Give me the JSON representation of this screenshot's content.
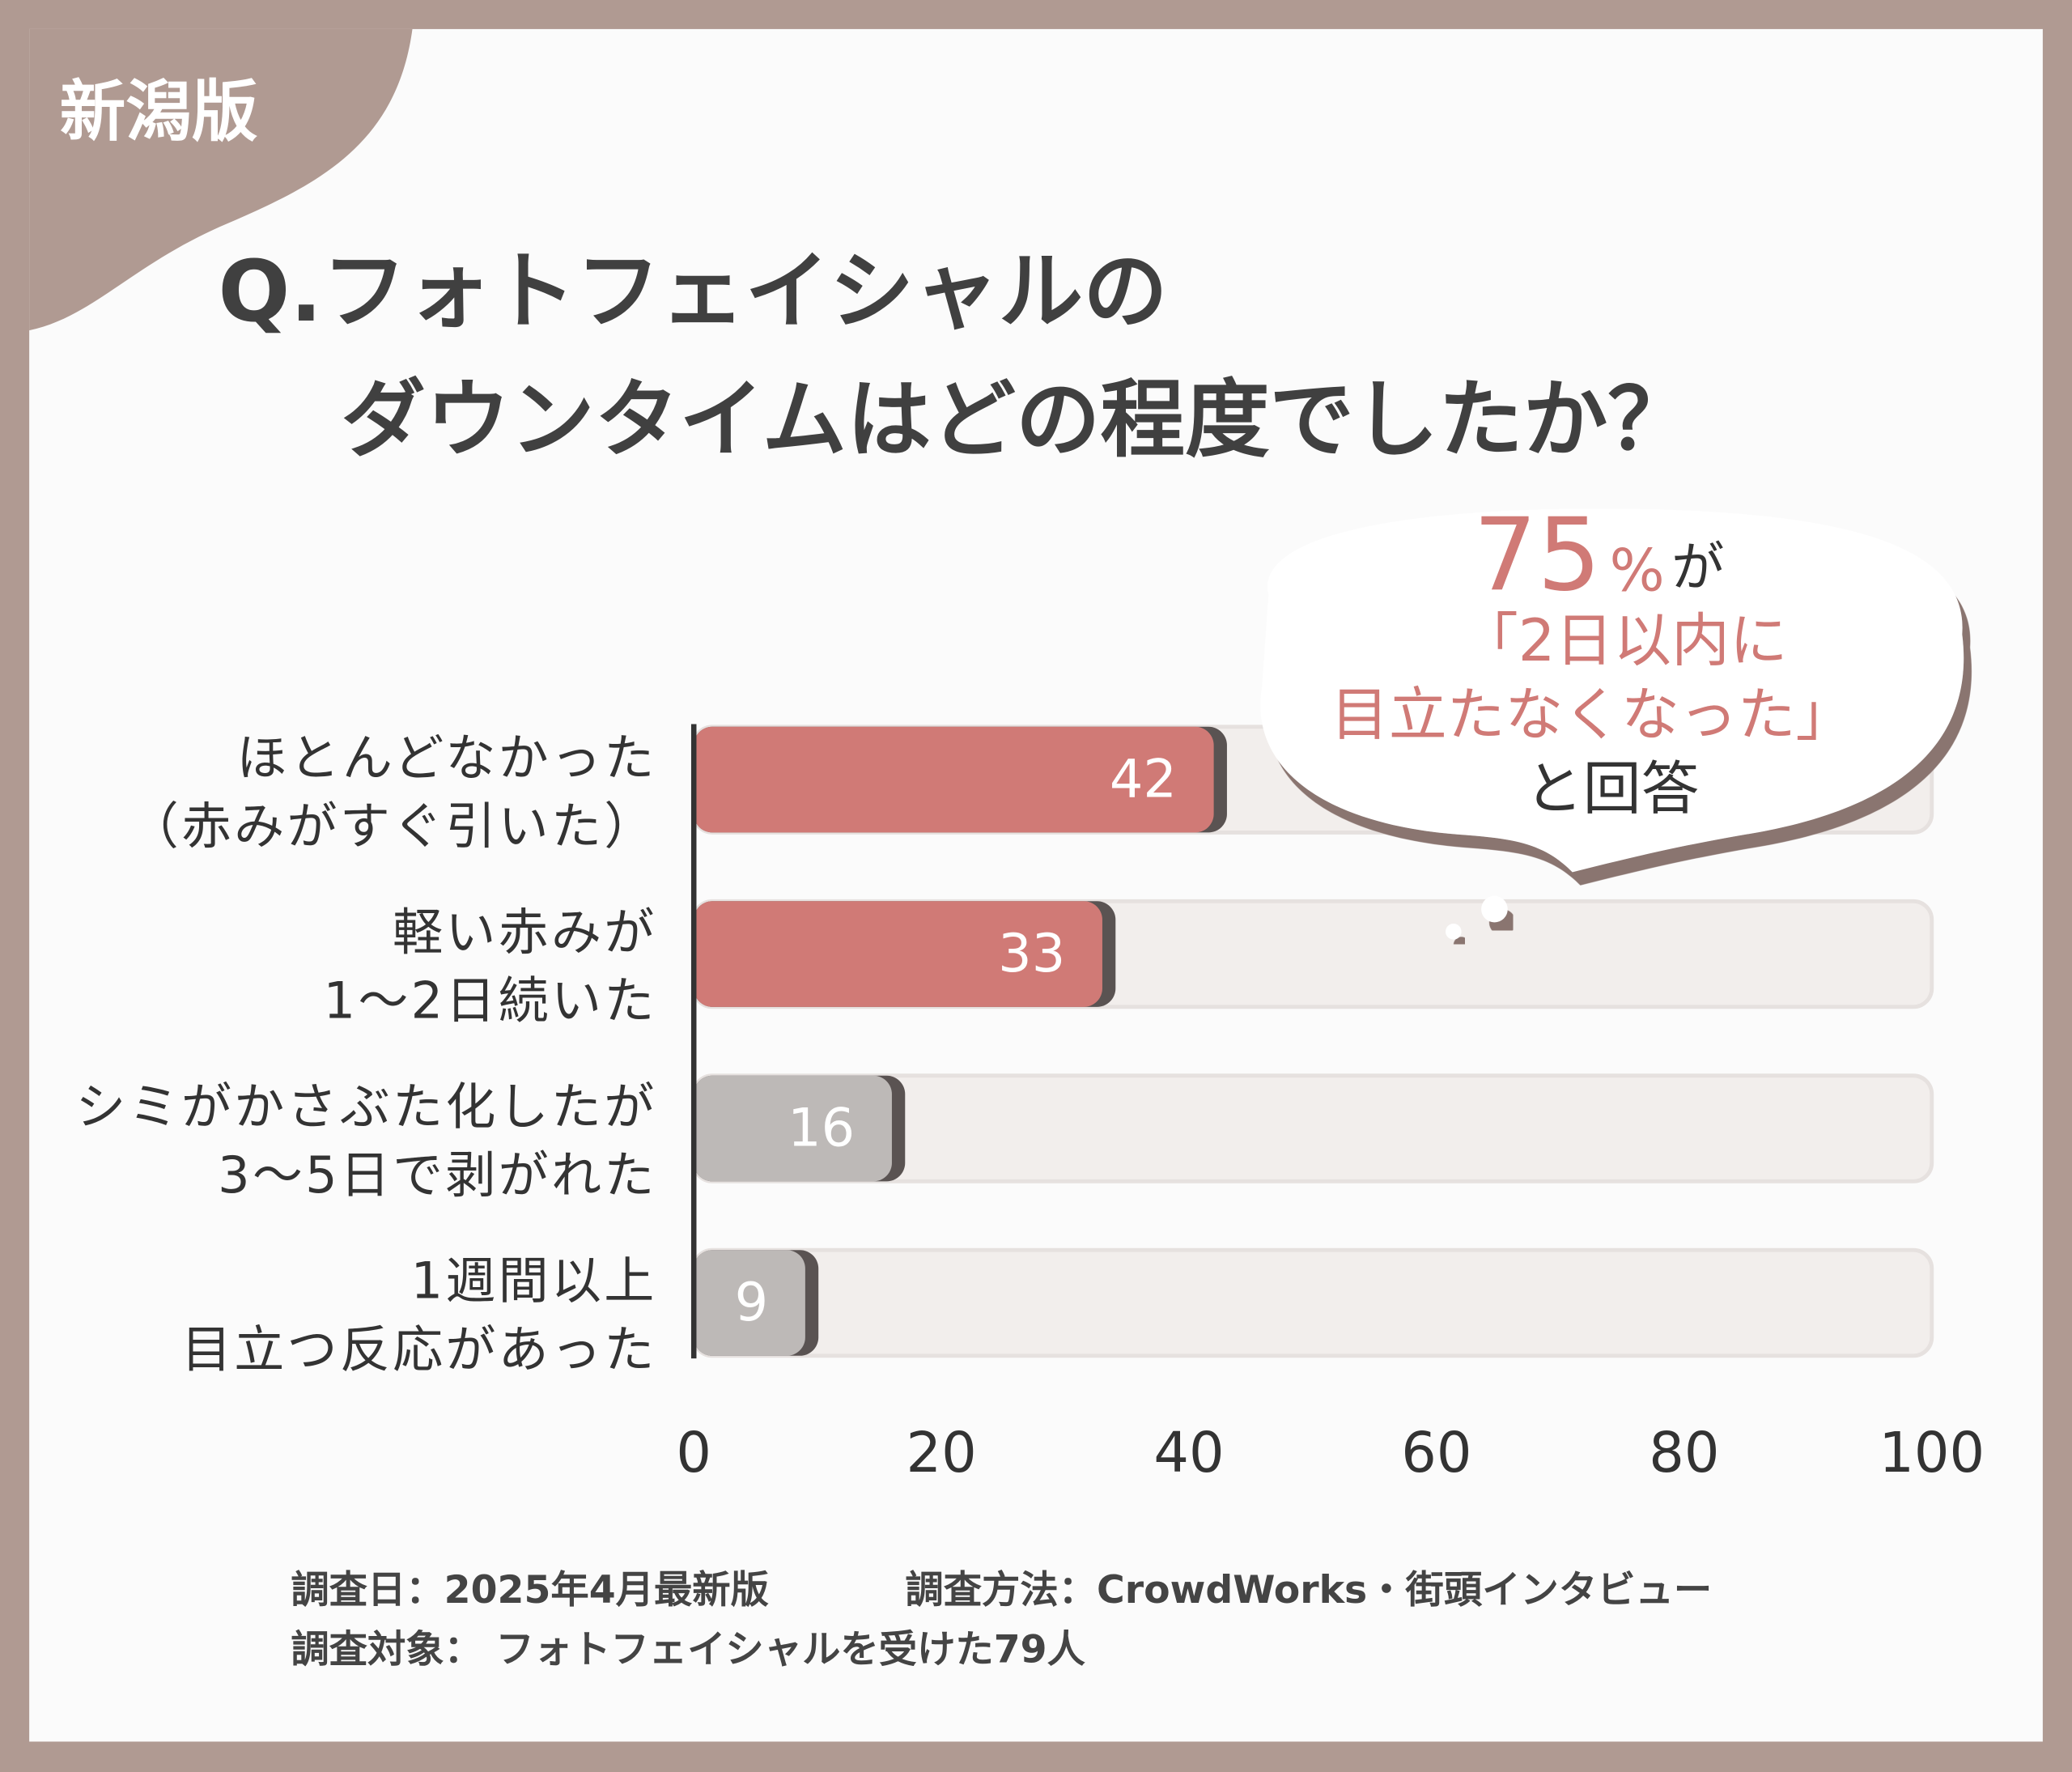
{
  "badge": "新潟版",
  "chart_data": {
    "type": "hbar",
    "title": [
      "Q.フォトフェイシャルの",
      "ダウンタイムはどの程度でしたか？"
    ],
    "categories": [
      [
        "ほとんどなかった",
        "（赤みがすぐ引いた）"
      ],
      [
        "軽い赤みが",
        "1～2日続いた"
      ],
      [
        "シミがかさぶた化したが",
        "3～5日で剥がれた"
      ],
      [
        "1週間以上",
        "目立つ反応があった"
      ]
    ],
    "values": [
      42,
      33,
      16,
      9
    ],
    "colors": [
      "#d07a76",
      "#d07a76",
      "#bdb9b7",
      "#bdb9b7"
    ],
    "track_color": "#f2eeec",
    "xlim": [
      0,
      100
    ],
    "xticks": [
      0,
      20,
      40,
      60,
      80,
      100
    ],
    "annotation": {
      "percent": "75",
      "unit": "%",
      "particle": "が",
      "line2": "「2日以内に",
      "line3": "目立たなくなった」",
      "line4": "と回答"
    }
  },
  "footer": {
    "date": "調査日：2025年4月最新版",
    "method": "調査方法：CrowdWorks・街頭インタビュー",
    "target": "調査対象： フォトフェイシャルを受けた79人"
  }
}
